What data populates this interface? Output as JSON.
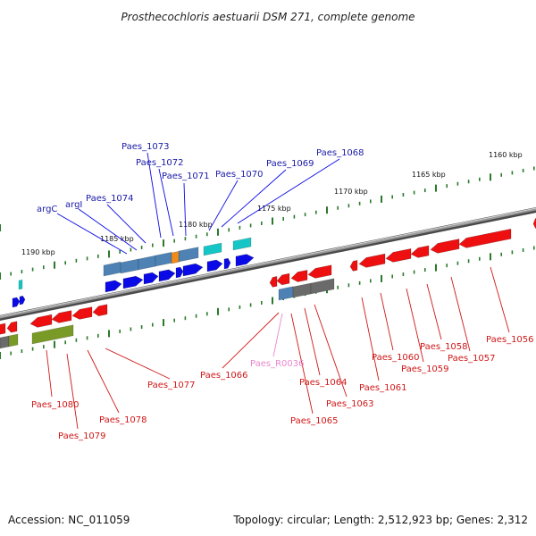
{
  "title": "Prosthecochloris aestuarii DSM 271, complete genome",
  "footer": {
    "accession": "Accession: NC_011059",
    "summary": "Topology: circular; Length: 2,512,923 bp; Genes: 2,312"
  },
  "colors": {
    "backbone": "#7a7a7a",
    "tick": "#2a7a2a",
    "forward_gene": "#0a0ae6",
    "reverse_gene": "#ee1010",
    "forward_cds_track": "#4e82b4",
    "reverse_cds_track": "#6a6a6a",
    "rna": "#16c6c6",
    "forward_label": "#1a1aa8",
    "reverse_label": "#d01818",
    "rna_label": "#e888cc",
    "highlight": "#f08a1a",
    "olive_track": "#7a9a28"
  },
  "scale_labels": [
    "1160 kbp",
    "1165 kbp",
    "1170 kbp",
    "1175 kbp",
    "1180 kbp",
    "1185 kbp",
    "1190 kbp"
  ],
  "forward_genes": [
    "argC",
    "argI",
    "Paes_1074",
    "Paes_1073",
    "Paes_1072",
    "Paes_1071",
    "Paes_1070",
    "Paes_1069",
    "Paes_1068"
  ],
  "reverse_genes": [
    "Paes_1080",
    "Paes_1079",
    "Paes_1078",
    "Paes_1077",
    "Paes_1066",
    "Paes_R0036",
    "Paes_1064",
    "Paes_1065",
    "Paes_1063",
    "Paes_1061",
    "Paes_1060",
    "Paes_1059",
    "Paes_1058",
    "Paes_1057",
    "Paes_1056"
  ]
}
